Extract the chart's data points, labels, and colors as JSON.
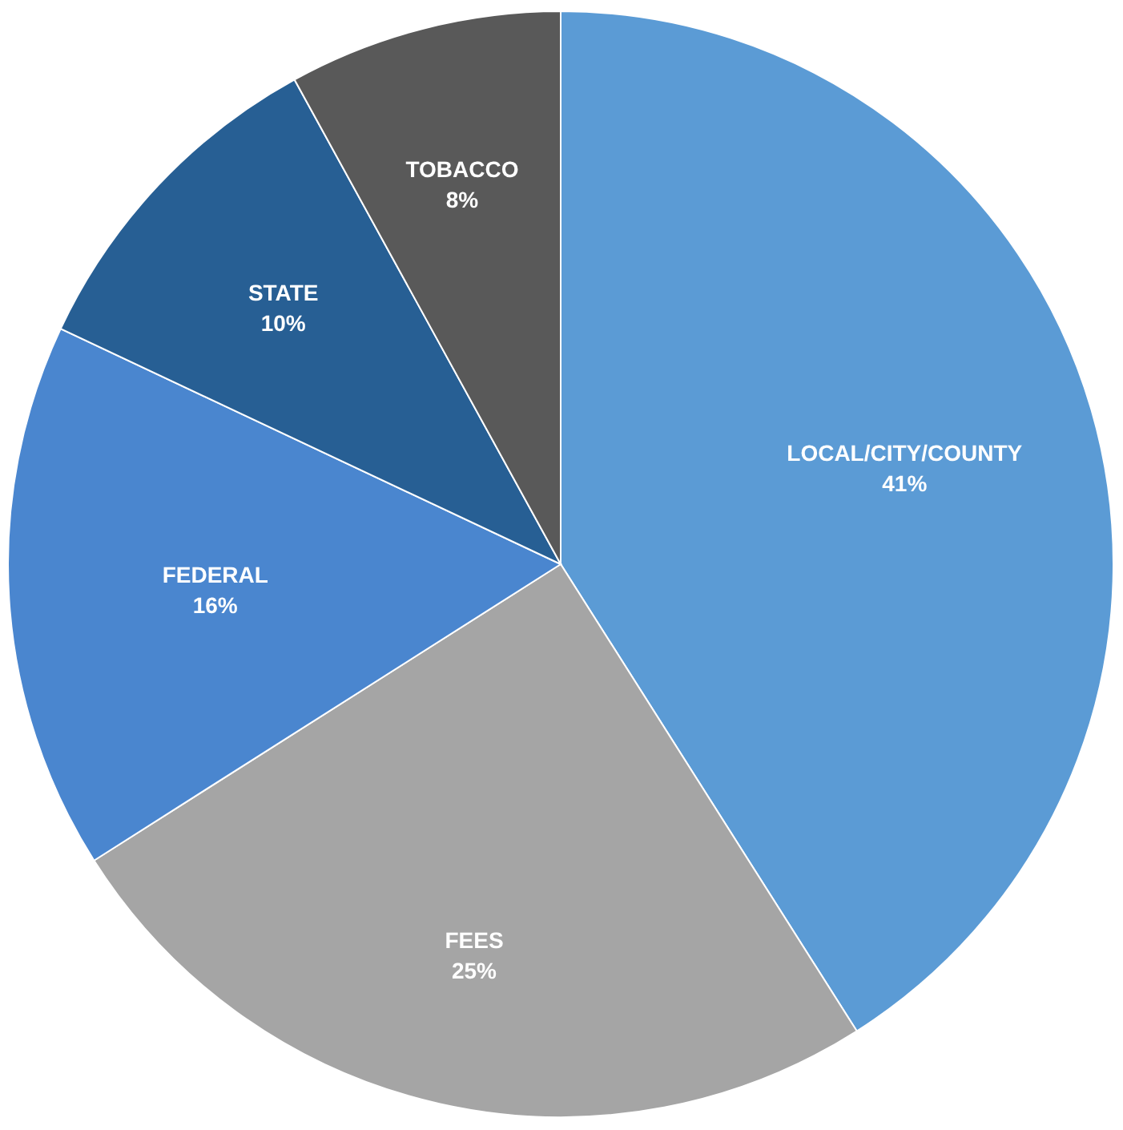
{
  "chart_data": {
    "type": "pie",
    "categories": [
      "LOCAL/CITY/COUNTY",
      "FEES",
      "FEDERAL",
      "STATE",
      "TOBACCO"
    ],
    "values": [
      41,
      25,
      16,
      10,
      8
    ],
    "colors": [
      "#5b9bd5",
      "#a5a5a5",
      "#4a86cf",
      "#275f94",
      "#595959"
    ],
    "value_labels": [
      "41%",
      "25%",
      "16%",
      "10%",
      "8%"
    ]
  }
}
